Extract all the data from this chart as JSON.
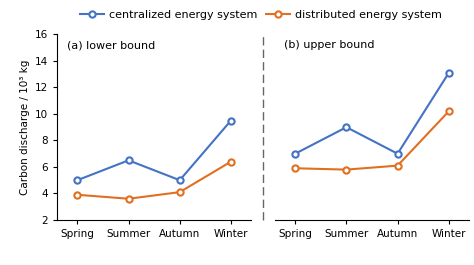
{
  "seasons": [
    "Spring",
    "Summer",
    "Autumn",
    "Winter"
  ],
  "lower_centralized": [
    5.0,
    6.5,
    5.0,
    9.5
  ],
  "lower_distributed": [
    3.9,
    3.6,
    4.1,
    6.4
  ],
  "upper_centralized": [
    7.0,
    9.0,
    7.0,
    13.1
  ],
  "upper_distributed": [
    5.9,
    5.8,
    6.1,
    10.2
  ],
  "ylim": [
    2,
    16
  ],
  "yticks": [
    2,
    4,
    6,
    8,
    10,
    12,
    14,
    16
  ],
  "ylabel": "Carbon discharge / 10³ kg",
  "label_a": "(a) lower bound",
  "label_b": "(b) upper bound",
  "legend_centralized": "centralized energy system",
  "legend_distributed": "distributed energy system",
  "color_centralized": "#4472C4",
  "color_distributed": "#E07020",
  "background_color": "#ffffff",
  "divider_color": "#666666"
}
